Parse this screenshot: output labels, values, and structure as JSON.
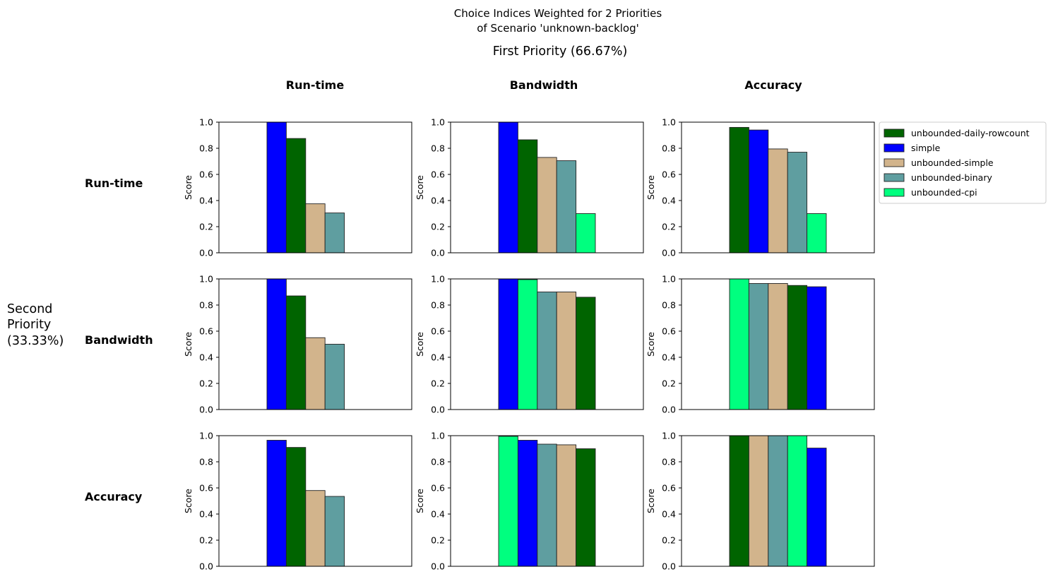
{
  "title_line1": "Choice Indices Weighted for 2 Priorities",
  "title_line2": "of Scenario 'unknown-backlog'",
  "first_priority_label": "First Priority (66.67%)",
  "second_priority_label": [
    "Second",
    "Priority",
    "(33.33%)"
  ],
  "column_labels": [
    "Run-time",
    "Bandwidth",
    "Accuracy"
  ],
  "row_labels": [
    "Run-time",
    "Bandwidth",
    "Accuracy"
  ],
  "colors": {
    "unbounded-daily-rowcount": "#006400",
    "simple": "#0000ff",
    "unbounded-simple": "#d2b48c",
    "unbounded-binary": "#5f9ea0",
    "unbounded-cpi": "#00ff7f"
  },
  "legend": {
    "placement": "right of top-right subplot",
    "entries": [
      "unbounded-daily-rowcount",
      "simple",
      "unbounded-simple",
      "unbounded-binary",
      "unbounded-cpi"
    ]
  },
  "chart_data": {
    "type": "bar",
    "ylabel": "Score",
    "ylim": [
      0,
      1
    ],
    "yticks": [
      "0.0",
      "0.2",
      "0.4",
      "0.6",
      "0.8",
      "1.0"
    ],
    "panels": [
      {
        "row": "Run-time",
        "col": "Run-time",
        "bars": [
          {
            "name": "simple",
            "value": 1.0
          },
          {
            "name": "unbounded-daily-rowcount",
            "value": 0.875
          },
          {
            "name": "unbounded-simple",
            "value": 0.375
          },
          {
            "name": "unbounded-binary",
            "value": 0.305
          },
          {
            "name": "unbounded-cpi",
            "value": 0.0
          }
        ]
      },
      {
        "row": "Run-time",
        "col": "Bandwidth",
        "bars": [
          {
            "name": "simple",
            "value": 1.0
          },
          {
            "name": "unbounded-daily-rowcount",
            "value": 0.865
          },
          {
            "name": "unbounded-simple",
            "value": 0.73
          },
          {
            "name": "unbounded-binary",
            "value": 0.705
          },
          {
            "name": "unbounded-cpi",
            "value": 0.3
          }
        ]
      },
      {
        "row": "Run-time",
        "col": "Accuracy",
        "bars": [
          {
            "name": "unbounded-daily-rowcount",
            "value": 0.96
          },
          {
            "name": "simple",
            "value": 0.94
          },
          {
            "name": "unbounded-simple",
            "value": 0.795
          },
          {
            "name": "unbounded-binary",
            "value": 0.77
          },
          {
            "name": "unbounded-cpi",
            "value": 0.3
          }
        ]
      },
      {
        "row": "Bandwidth",
        "col": "Run-time",
        "bars": [
          {
            "name": "simple",
            "value": 1.0
          },
          {
            "name": "unbounded-daily-rowcount",
            "value": 0.87
          },
          {
            "name": "unbounded-simple",
            "value": 0.55
          },
          {
            "name": "unbounded-binary",
            "value": 0.5
          },
          {
            "name": "unbounded-cpi",
            "value": 0.0
          }
        ]
      },
      {
        "row": "Bandwidth",
        "col": "Bandwidth",
        "bars": [
          {
            "name": "simple",
            "value": 1.0
          },
          {
            "name": "unbounded-cpi",
            "value": 0.995
          },
          {
            "name": "unbounded-binary",
            "value": 0.9
          },
          {
            "name": "unbounded-simple",
            "value": 0.9
          },
          {
            "name": "unbounded-daily-rowcount",
            "value": 0.86
          }
        ]
      },
      {
        "row": "Bandwidth",
        "col": "Accuracy",
        "bars": [
          {
            "name": "unbounded-cpi",
            "value": 1.0
          },
          {
            "name": "unbounded-binary",
            "value": 0.965
          },
          {
            "name": "unbounded-simple",
            "value": 0.965
          },
          {
            "name": "unbounded-daily-rowcount",
            "value": 0.95
          },
          {
            "name": "simple",
            "value": 0.94
          }
        ]
      },
      {
        "row": "Accuracy",
        "col": "Run-time",
        "bars": [
          {
            "name": "simple",
            "value": 0.965
          },
          {
            "name": "unbounded-daily-rowcount",
            "value": 0.91
          },
          {
            "name": "unbounded-simple",
            "value": 0.58
          },
          {
            "name": "unbounded-binary",
            "value": 0.535
          },
          {
            "name": "unbounded-cpi",
            "value": 0.0
          }
        ]
      },
      {
        "row": "Accuracy",
        "col": "Bandwidth",
        "bars": [
          {
            "name": "unbounded-cpi",
            "value": 0.995
          },
          {
            "name": "simple",
            "value": 0.965
          },
          {
            "name": "unbounded-binary",
            "value": 0.935
          },
          {
            "name": "unbounded-simple",
            "value": 0.93
          },
          {
            "name": "unbounded-daily-rowcount",
            "value": 0.9
          }
        ]
      },
      {
        "row": "Accuracy",
        "col": "Accuracy",
        "bars": [
          {
            "name": "unbounded-daily-rowcount",
            "value": 1.0
          },
          {
            "name": "unbounded-simple",
            "value": 1.0
          },
          {
            "name": "unbounded-binary",
            "value": 1.0
          },
          {
            "name": "unbounded-cpi",
            "value": 1.0
          },
          {
            "name": "simple",
            "value": 0.905
          }
        ]
      }
    ]
  }
}
